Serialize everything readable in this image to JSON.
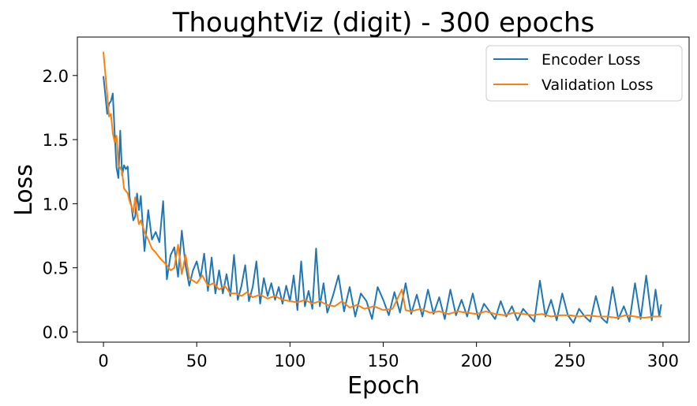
{
  "chart_data": {
    "type": "line",
    "title": "ThoughtViz (digit) - 300 epochs",
    "xlabel": "Epoch",
    "ylabel": "Loss",
    "xlim": [
      -14,
      314
    ],
    "ylim": [
      -0.08,
      2.3
    ],
    "xticks": [
      0,
      50,
      100,
      150,
      200,
      250,
      300
    ],
    "yticks": [
      0.0,
      0.5,
      1.0,
      1.5,
      2.0
    ],
    "xtick_labels": [
      "0",
      "50",
      "100",
      "150",
      "200",
      "250",
      "300"
    ],
    "ytick_labels": [
      "0.0",
      "0.5",
      "1.0",
      "1.5",
      "2.0"
    ],
    "grid": false,
    "legend_position": "top-right",
    "series": [
      {
        "name": "Encoder Loss",
        "color": "#1f77b4",
        "x": [
          0,
          1,
          2,
          3,
          4,
          5,
          6,
          7,
          8,
          9,
          10,
          11,
          12,
          13,
          14,
          15,
          16,
          17,
          18,
          19,
          20,
          22,
          24,
          26,
          28,
          30,
          32,
          34,
          36,
          38,
          40,
          42,
          44,
          46,
          48,
          50,
          52,
          54,
          56,
          58,
          60,
          62,
          64,
          66,
          68,
          70,
          72,
          74,
          76,
          78,
          80,
          82,
          84,
          86,
          88,
          90,
          92,
          94,
          96,
          98,
          100,
          102,
          104,
          106,
          108,
          110,
          112,
          114,
          116,
          118,
          120,
          123,
          126,
          129,
          132,
          135,
          138,
          141,
          144,
          147,
          150,
          153,
          156,
          159,
          162,
          165,
          168,
          171,
          174,
          177,
          180,
          183,
          186,
          189,
          192,
          195,
          198,
          201,
          204,
          207,
          210,
          213,
          216,
          219,
          222,
          225,
          228,
          231,
          234,
          237,
          240,
          243,
          246,
          249,
          252,
          255,
          258,
          261,
          264,
          267,
          270,
          273,
          276,
          279,
          282,
          285,
          288,
          291,
          294,
          296,
          298,
          299
        ],
        "y": [
          1.99,
          1.85,
          1.7,
          1.78,
          1.8,
          1.86,
          1.55,
          1.28,
          1.2,
          1.57,
          1.22,
          1.3,
          1.27,
          1.29,
          1.05,
          0.98,
          0.87,
          0.9,
          1.08,
          0.95,
          1.06,
          0.63,
          0.95,
          0.72,
          0.78,
          0.7,
          1.02,
          0.41,
          0.6,
          0.66,
          0.43,
          0.79,
          0.52,
          0.36,
          0.48,
          0.55,
          0.42,
          0.61,
          0.32,
          0.58,
          0.3,
          0.48,
          0.3,
          0.45,
          0.28,
          0.6,
          0.25,
          0.36,
          0.52,
          0.24,
          0.35,
          0.55,
          0.22,
          0.42,
          0.28,
          0.38,
          0.25,
          0.35,
          0.22,
          0.36,
          0.24,
          0.44,
          0.17,
          0.55,
          0.2,
          0.32,
          0.18,
          0.65,
          0.2,
          0.38,
          0.15,
          0.28,
          0.44,
          0.16,
          0.35,
          0.12,
          0.3,
          0.24,
          0.1,
          0.35,
          0.25,
          0.13,
          0.31,
          0.15,
          0.38,
          0.14,
          0.29,
          0.12,
          0.33,
          0.14,
          0.27,
          0.1,
          0.33,
          0.13,
          0.25,
          0.12,
          0.3,
          0.1,
          0.22,
          0.16,
          0.1,
          0.24,
          0.12,
          0.2,
          0.09,
          0.18,
          0.13,
          0.08,
          0.4,
          0.12,
          0.25,
          0.09,
          0.3,
          0.13,
          0.07,
          0.18,
          0.12,
          0.08,
          0.28,
          0.11,
          0.07,
          0.35,
          0.1,
          0.2,
          0.08,
          0.38,
          0.1,
          0.44,
          0.09,
          0.33,
          0.12,
          0.21
        ]
      },
      {
        "name": "Validation Loss",
        "color": "#ff7f0e",
        "x": [
          0,
          2,
          3,
          4,
          5,
          6,
          7,
          8,
          9,
          10,
          11,
          12,
          13,
          14,
          15,
          16,
          17,
          18,
          19,
          20,
          22,
          24,
          26,
          28,
          30,
          32,
          34,
          36,
          38,
          40,
          42,
          44,
          46,
          48,
          50,
          53,
          56,
          59,
          62,
          65,
          68,
          71,
          74,
          77,
          80,
          84,
          88,
          92,
          96,
          100,
          104,
          108,
          112,
          116,
          120,
          124,
          128,
          132,
          136,
          140,
          145,
          150,
          155,
          160,
          162,
          165,
          170,
          175,
          180,
          185,
          190,
          195,
          200,
          205,
          210,
          215,
          220,
          225,
          230,
          235,
          240,
          245,
          250,
          255,
          260,
          265,
          270,
          275,
          280,
          285,
          290,
          295,
          299
        ],
        "y": [
          2.18,
          1.85,
          1.68,
          1.7,
          1.55,
          1.48,
          1.53,
          1.3,
          1.28,
          1.25,
          1.12,
          1.1,
          1.08,
          1.02,
          0.98,
          0.93,
          1.05,
          0.92,
          0.84,
          0.87,
          0.78,
          0.72,
          0.65,
          0.62,
          0.58,
          0.55,
          0.52,
          0.48,
          0.5,
          0.68,
          0.45,
          0.6,
          0.42,
          0.4,
          0.38,
          0.44,
          0.36,
          0.38,
          0.33,
          0.36,
          0.3,
          0.3,
          0.28,
          0.31,
          0.27,
          0.29,
          0.26,
          0.28,
          0.25,
          0.24,
          0.23,
          0.25,
          0.22,
          0.24,
          0.21,
          0.2,
          0.24,
          0.19,
          0.21,
          0.18,
          0.2,
          0.17,
          0.18,
          0.33,
          0.17,
          0.16,
          0.18,
          0.15,
          0.16,
          0.14,
          0.16,
          0.15,
          0.14,
          0.16,
          0.14,
          0.13,
          0.15,
          0.14,
          0.13,
          0.14,
          0.12,
          0.13,
          0.13,
          0.12,
          0.13,
          0.12,
          0.12,
          0.11,
          0.13,
          0.12,
          0.11,
          0.12,
          0.12
        ]
      }
    ]
  }
}
